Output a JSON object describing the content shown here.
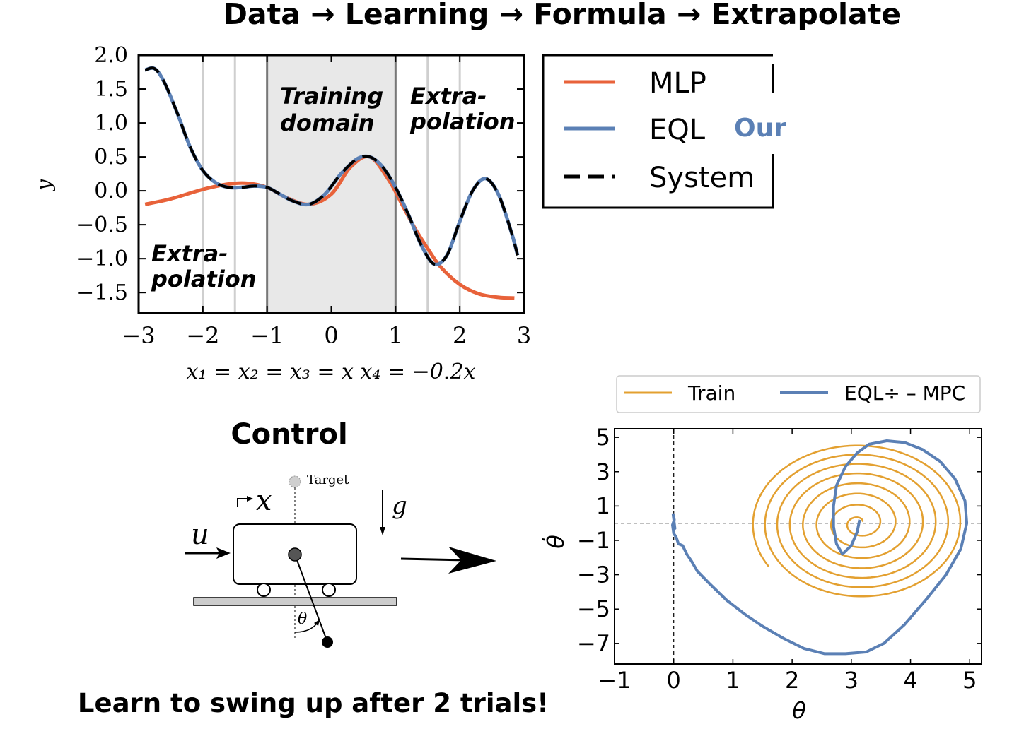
{
  "main_title": "Data → Learning → Formula → Extrapolate",
  "control_title": "Control",
  "caption": "Learn to swing up after 2 trials!",
  "diagram": {
    "target_label": "Target",
    "x_symbol": "x",
    "g_symbol": "g",
    "u_symbol": "u",
    "theta_symbol": "θ"
  },
  "chart_data": [
    {
      "type": "line",
      "xlabel": "x₁ = x₂ = x₃ = x    x₄ = −0.2x",
      "ylabel": "y",
      "xlim": [
        -3,
        3
      ],
      "ylim": [
        -1.8,
        2.0
      ],
      "xticks": [
        "−3",
        "−2",
        "−1",
        "0",
        "1",
        "2",
        "3"
      ],
      "yticks": [
        "2.0",
        "1.5",
        "1.0",
        "0.5",
        "0.0",
        "−0.5",
        "−1.0",
        "−1.5"
      ],
      "shaded_region": [
        -1,
        1
      ],
      "annotations": {
        "training": [
          "Training",
          "domain"
        ],
        "extra_right": [
          "Extra-",
          "polation"
        ],
        "extra_left": [
          "Extra-",
          "polation"
        ],
        "our": "Our"
      },
      "legend": {
        "position": "outside-right",
        "entries": [
          "MLP",
          "EQL",
          "System"
        ]
      },
      "series": [
        {
          "name": "MLP",
          "color": "#e8623a",
          "x": [
            -2.9,
            -2.5,
            -2.0,
            -1.6,
            -1.3,
            -1.0,
            -0.7,
            -0.35,
            0.0,
            0.3,
            0.6,
            0.9,
            1.1,
            1.3,
            1.5,
            1.7,
            2.0,
            2.3,
            2.6,
            2.85
          ],
          "y": [
            -0.2,
            -0.12,
            0.02,
            0.1,
            0.11,
            0.05,
            -0.1,
            -0.2,
            -0.05,
            0.35,
            0.5,
            0.15,
            -0.2,
            -0.55,
            -0.85,
            -1.12,
            -1.38,
            -1.52,
            -1.57,
            -1.58
          ]
        },
        {
          "name": "EQL",
          "color": "#5b80b5",
          "x": [
            -2.9,
            -2.75,
            -2.6,
            -2.4,
            -2.2,
            -2.0,
            -1.8,
            -1.6,
            -1.4,
            -1.2,
            -1.0,
            -0.8,
            -0.6,
            -0.35,
            -0.1,
            0.15,
            0.4,
            0.6,
            0.8,
            1.0,
            1.2,
            1.4,
            1.6,
            1.8,
            2.0,
            2.2,
            2.4,
            2.6,
            2.8,
            2.9
          ],
          "y": [
            1.78,
            1.8,
            1.6,
            1.15,
            0.65,
            0.3,
            0.12,
            0.05,
            0.05,
            0.07,
            0.05,
            -0.05,
            -0.15,
            -0.2,
            -0.05,
            0.25,
            0.47,
            0.5,
            0.35,
            0.05,
            -0.35,
            -0.8,
            -1.08,
            -0.95,
            -0.45,
            0.0,
            0.18,
            -0.05,
            -0.6,
            -0.95
          ]
        },
        {
          "name": "System",
          "color": "#000000",
          "x": [
            -2.9,
            -2.75,
            -2.6,
            -2.4,
            -2.2,
            -2.0,
            -1.8,
            -1.6,
            -1.4,
            -1.2,
            -1.0,
            -0.8,
            -0.6,
            -0.35,
            -0.1,
            0.15,
            0.4,
            0.6,
            0.8,
            1.0,
            1.2,
            1.4,
            1.6,
            1.8,
            2.0,
            2.2,
            2.4,
            2.6,
            2.8,
            2.9
          ],
          "y": [
            1.78,
            1.8,
            1.6,
            1.15,
            0.65,
            0.3,
            0.12,
            0.05,
            0.05,
            0.07,
            0.05,
            -0.05,
            -0.15,
            -0.2,
            -0.05,
            0.25,
            0.47,
            0.5,
            0.35,
            0.05,
            -0.35,
            -0.8,
            -1.08,
            -0.95,
            -0.45,
            0.0,
            0.18,
            -0.05,
            -0.6,
            -0.95
          ]
        }
      ]
    },
    {
      "type": "line",
      "xlabel": "θ",
      "ylabel": "θ̇",
      "xlim": [
        -1,
        5.2
      ],
      "ylim": [
        -8.2,
        5.5
      ],
      "xticks": [
        "−1",
        "0",
        "1",
        "2",
        "3",
        "4",
        "5"
      ],
      "yticks": [
        "5",
        "3",
        "1",
        "−1",
        "−3",
        "−5",
        "−7"
      ],
      "reference_lines": {
        "x": 0,
        "y": 0
      },
      "legend": {
        "position": "top",
        "entries": [
          "Train",
          "EQL÷ – MPC"
        ]
      },
      "series": [
        {
          "name": "Train",
          "color": "#e3a030",
          "spiral": {
            "center": [
              3.14,
              0
            ],
            "start_point": [
              1.68,
              -2.4
            ],
            "turns": 7.5,
            "outer_radius_x": 1.82,
            "outer_radius_y": 4.7
          }
        },
        {
          "name": "EQL÷ – MPC",
          "color": "#5b80b5",
          "x": [
            3.14,
            3.1,
            3.0,
            2.85,
            2.75,
            2.7,
            2.7,
            2.75,
            2.9,
            3.1,
            3.3,
            3.6,
            3.9,
            4.2,
            4.5,
            4.75,
            4.92,
            4.95,
            4.85,
            4.6,
            4.25,
            3.9,
            3.55,
            3.25,
            2.9,
            2.55,
            2.2,
            1.85,
            1.5,
            1.2,
            0.9,
            0.6,
            0.4,
            0.3,
            0.22,
            0.15,
            0.08,
            0.04,
            0.0,
            -0.02,
            0.01,
            -0.01,
            0.02,
            0.0
          ],
          "y": [
            0.2,
            -0.5,
            -1.3,
            -1.8,
            -1.2,
            -0.2,
            1.0,
            2.2,
            3.3,
            4.1,
            4.6,
            4.8,
            4.7,
            4.3,
            3.6,
            2.6,
            1.3,
            0.0,
            -1.5,
            -3.0,
            -4.5,
            -5.9,
            -7.0,
            -7.5,
            -7.6,
            -7.6,
            -7.3,
            -6.7,
            -6.0,
            -5.3,
            -4.5,
            -3.5,
            -2.8,
            -2.2,
            -1.8,
            -1.3,
            -1.2,
            -0.8,
            -0.6,
            -0.1,
            0.2,
            0.5,
            -0.3,
            0.1
          ]
        }
      ]
    }
  ]
}
